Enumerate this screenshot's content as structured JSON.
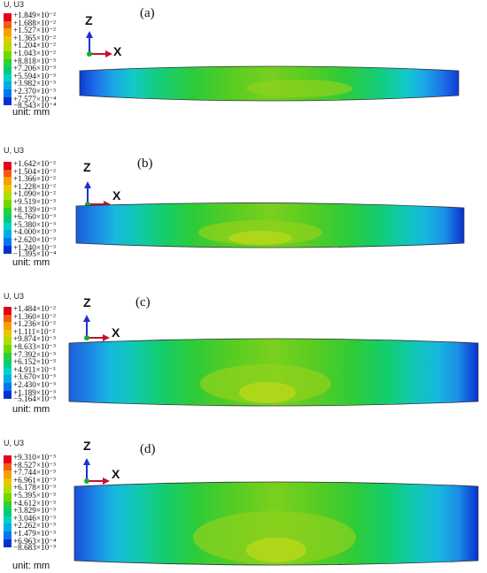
{
  "legend_colors": [
    "#e4001b",
    "#f45a10",
    "#f4a000",
    "#e6c800",
    "#b4dc00",
    "#6ed800",
    "#28d232",
    "#00cd7c",
    "#00d3c3",
    "#00aee6",
    "#0078f0",
    "#0032d2"
  ],
  "panels": [
    {
      "label": "(a)",
      "legend_title": "U, U3",
      "unit": "unit: mm",
      "legend_values": [
        "+1.849×10⁻²",
        "+1.688×10⁻²",
        "+1.527×10⁻²",
        "+1.365×10⁻²",
        "+1.204×10⁻²",
        "+1.043×10⁻²",
        "+8.818×10⁻³",
        "+7.206×10⁻³",
        "+5.594×10⁻³",
        "+3.982×10⁻³",
        "+2.370×10⁻³",
        "+7.577×10⁻⁴",
        "−8.543×10⁻⁴"
      ],
      "axes": {
        "z": "Z",
        "x": "X"
      }
    },
    {
      "label": "(b)",
      "legend_title": "U, U3",
      "unit": "unit: mm",
      "legend_values": [
        "+1.642×10⁻²",
        "+1.504×10⁻²",
        "+1.366×10⁻²",
        "+1.228×10⁻²",
        "+1.090×10⁻²",
        "+9.519×10⁻³",
        "+8.139×10⁻³",
        "+6.760×10⁻³",
        "+5.380×10⁻³",
        "+4.000×10⁻³",
        "+2.620×10⁻³",
        "+1.240×10⁻³",
        "−1.395×10⁻⁴"
      ],
      "axes": {
        "z": "Z",
        "x": "X"
      }
    },
    {
      "label": "(c)",
      "legend_title": "U, U3",
      "unit": "unit: mm",
      "legend_values": [
        "+1.484×10⁻²",
        "+1.360×10⁻²",
        "+1.236×10⁻²",
        "+1.111×10⁻²",
        "+9.874×10⁻³",
        "+8.633×10⁻³",
        "+7.392×10⁻³",
        "+6.152×10⁻³",
        "+4.911×10⁻³",
        "+3.670×10⁻³",
        "+2.430×10⁻³",
        "+1.189×10⁻³",
        "−5.164×10⁻⁵"
      ],
      "axes": {
        "z": "Z",
        "x": "X"
      }
    },
    {
      "label": "(d)",
      "legend_title": "U, U3",
      "unit": "unit: mm",
      "legend_values": [
        "+9.310×10⁻³",
        "+8.527×10⁻³",
        "+7.744×10⁻³",
        "+6.961×10⁻³",
        "+6.178×10⁻³",
        "+5.395×10⁻³",
        "+4.612×10⁻³",
        "+3.829×10⁻³",
        "+3.046×10⁻³",
        "+2.262×10⁻³",
        "+1.479×10⁻³",
        "+6.963×10⁻⁴",
        "−8.683×10⁻⁵"
      ],
      "axes": {
        "z": "Z",
        "x": "X"
      }
    }
  ]
}
